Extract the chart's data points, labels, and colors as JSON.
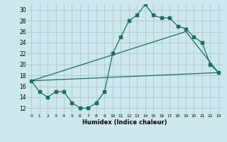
{
  "xlabel": "Humidex (Indice chaleur)",
  "bg_color": "#cde8ec",
  "grid_color": "#aecdd2",
  "line_color": "#1a7060",
  "xlim": [
    -0.5,
    23.5
  ],
  "ylim": [
    11,
    31
  ],
  "xticks": [
    0,
    1,
    2,
    3,
    4,
    5,
    6,
    7,
    8,
    9,
    10,
    11,
    12,
    13,
    14,
    15,
    16,
    17,
    18,
    19,
    20,
    21,
    22,
    23
  ],
  "yticks": [
    12,
    14,
    16,
    18,
    20,
    22,
    24,
    26,
    28,
    30
  ],
  "curve1_x": [
    0,
    1,
    2,
    3,
    4,
    5,
    6,
    7,
    8,
    9,
    10,
    11,
    12,
    13,
    14,
    15,
    16,
    17,
    18,
    19,
    20,
    21,
    22,
    23
  ],
  "curve1_y": [
    17,
    15,
    14,
    15,
    15,
    13,
    12,
    12,
    13,
    15,
    22,
    25,
    28,
    29,
    31,
    29,
    28.5,
    28.5,
    27,
    26.5,
    25,
    24,
    20,
    18.5
  ],
  "curve2_x": [
    0,
    23
  ],
  "curve2_y": [
    17,
    18.5
  ],
  "curve3_x": [
    0,
    19,
    23
  ],
  "curve3_y": [
    17,
    26,
    18.5
  ]
}
